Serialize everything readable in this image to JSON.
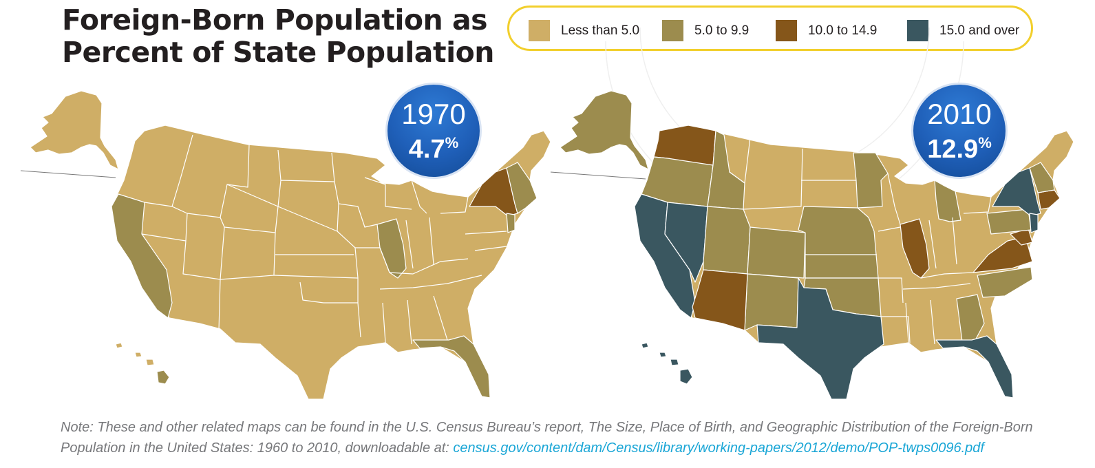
{
  "title_line1": "Foreign-Born Population as",
  "title_line2": "Percent of State Population",
  "legend": [
    {
      "label": "Less than 5.0",
      "color": "#cfae66"
    },
    {
      "label": "5.0 to 9.9",
      "color": "#9c8c4e"
    },
    {
      "label": "10.0 to 14.9",
      "color": "#85561a"
    },
    {
      "label": "15.0 and over",
      "color": "#3a5760"
    }
  ],
  "maps": [
    {
      "year": "1970",
      "percent": "4.7",
      "percent_sign": "%",
      "overall_percent_value": 4.7
    },
    {
      "year": "2010",
      "percent": "12.9",
      "percent_sign": "%",
      "overall_percent_value": 12.9
    }
  ],
  "note": {
    "text": "Note: These and other related maps can be found in the U.S. Census Bureau’s report, The Size, Place of Birth, and Geographic Distribution of the Foreign-Born Population in the United States: 1960 to 2010, downloadable at: ",
    "link": "census.gov/content/dam/Census/library/working-papers/2012/demo/POP-twps0096.pdf"
  }
}
